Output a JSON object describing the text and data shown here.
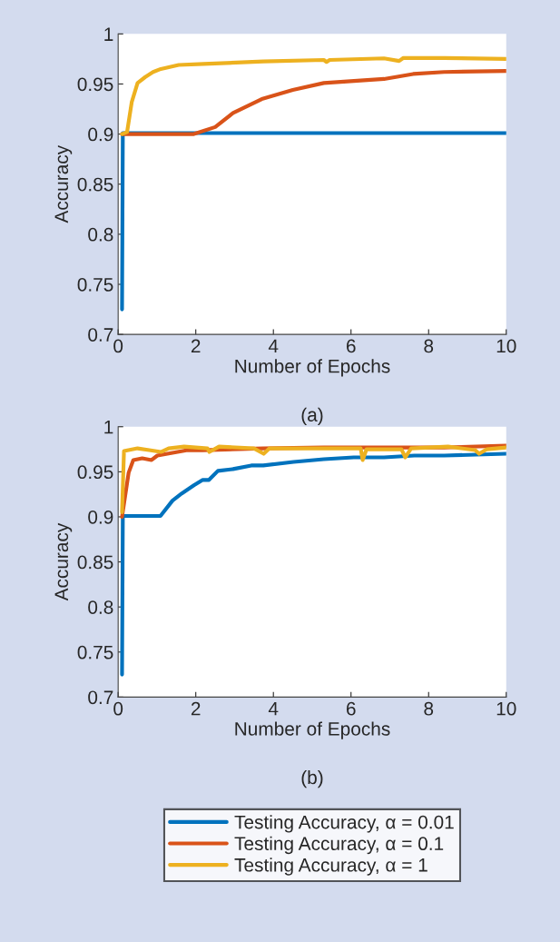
{
  "chart_data": [
    {
      "type": "line",
      "xlabel": "Number of Epochs",
      "ylabel": "Accuracy",
      "annotations": [
        "(a)"
      ],
      "xlim": [
        0,
        10
      ],
      "ylim": [
        0.7,
        1
      ],
      "xticks": [
        0,
        2,
        4,
        6,
        8,
        10
      ],
      "yticks": [
        0.7,
        0.75,
        0.8,
        0.85,
        0.9,
        0.95,
        1
      ],
      "grid": false,
      "legend": false,
      "series": [
        {
          "color": "#0072bd",
          "x": [
            0.1,
            0.12,
            10
          ],
          "values": [
            0.725,
            0.901,
            0.901
          ]
        },
        {
          "color": "#d95319",
          "x": [
            0.1,
            1.95,
            2.5,
            2.96,
            3.7,
            4.5,
            5.3,
            6.85,
            7.6,
            8.4,
            10
          ],
          "values": [
            0.9,
            0.9,
            0.907,
            0.921,
            0.935,
            0.944,
            0.951,
            0.955,
            0.96,
            0.962,
            0.963
          ]
        },
        {
          "color": "#edb120",
          "x": [
            0.1,
            0.23,
            0.35,
            0.5,
            0.7,
            0.9,
            1.1,
            1.56,
            2.2,
            3.74,
            5.3,
            5.37,
            5.45,
            6.85,
            7.24,
            7.35,
            8.4,
            10
          ],
          "values": [
            0.9,
            0.902,
            0.932,
            0.951,
            0.957,
            0.962,
            0.965,
            0.969,
            0.97,
            0.9725,
            0.974,
            0.972,
            0.974,
            0.9756,
            0.973,
            0.976,
            0.976,
            0.975
          ]
        }
      ]
    },
    {
      "type": "line",
      "xlabel": "Number of Epochs",
      "ylabel": "Accuracy",
      "annotations": [
        "(b)"
      ],
      "xlim": [
        0,
        10
      ],
      "ylim": [
        0.7,
        1
      ],
      "xticks": [
        0,
        2,
        4,
        6,
        8,
        10
      ],
      "yticks": [
        0.7,
        0.75,
        0.8,
        0.85,
        0.9,
        0.95,
        1
      ],
      "grid": false,
      "legend": "bottom",
      "series": [
        {
          "name": "Testing Accuracy, α = 0.01",
          "color": "#0072bd",
          "x": [
            0.1,
            0.12,
            1.09,
            1.4,
            1.64,
            1.95,
            2.18,
            2.34,
            2.57,
            2.96,
            3.43,
            3.74,
            4.52,
            5.3,
            6.07,
            6.85,
            7.63,
            8.4,
            10
          ],
          "values": [
            0.725,
            0.901,
            0.901,
            0.918,
            0.926,
            0.935,
            0.941,
            0.941,
            0.951,
            0.953,
            0.957,
            0.957,
            0.961,
            0.964,
            0.966,
            0.966,
            0.968,
            0.968,
            0.97
          ]
        },
        {
          "name": "Testing Accuracy, α = 0.1",
          "color": "#d95319",
          "x": [
            0.1,
            0.27,
            0.39,
            0.62,
            0.86,
            1.01,
            1.4,
            1.79,
            2.18,
            3.74,
            5.3,
            6.85,
            8.4,
            10
          ],
          "values": [
            0.9,
            0.949,
            0.963,
            0.965,
            0.963,
            0.968,
            0.971,
            0.974,
            0.974,
            0.976,
            0.977,
            0.977,
            0.977,
            0.979
          ]
        },
        {
          "name": "Testing Accuracy, α = 1",
          "color": "#edb120",
          "x": [
            0.1,
            0.15,
            0.5,
            0.8,
            1.1,
            1.3,
            1.7,
            2.3,
            2.35,
            2.6,
            3.5,
            3.75,
            3.9,
            5.0,
            6.25,
            6.3,
            6.4,
            7.3,
            7.4,
            7.55,
            8.5,
            9.2,
            9.3,
            9.5,
            10
          ],
          "values": [
            0.905,
            0.973,
            0.976,
            0.974,
            0.972,
            0.976,
            0.978,
            0.976,
            0.972,
            0.978,
            0.976,
            0.97,
            0.976,
            0.976,
            0.976,
            0.963,
            0.975,
            0.975,
            0.966,
            0.976,
            0.978,
            0.974,
            0.97,
            0.975,
            0.977
          ]
        }
      ]
    }
  ]
}
